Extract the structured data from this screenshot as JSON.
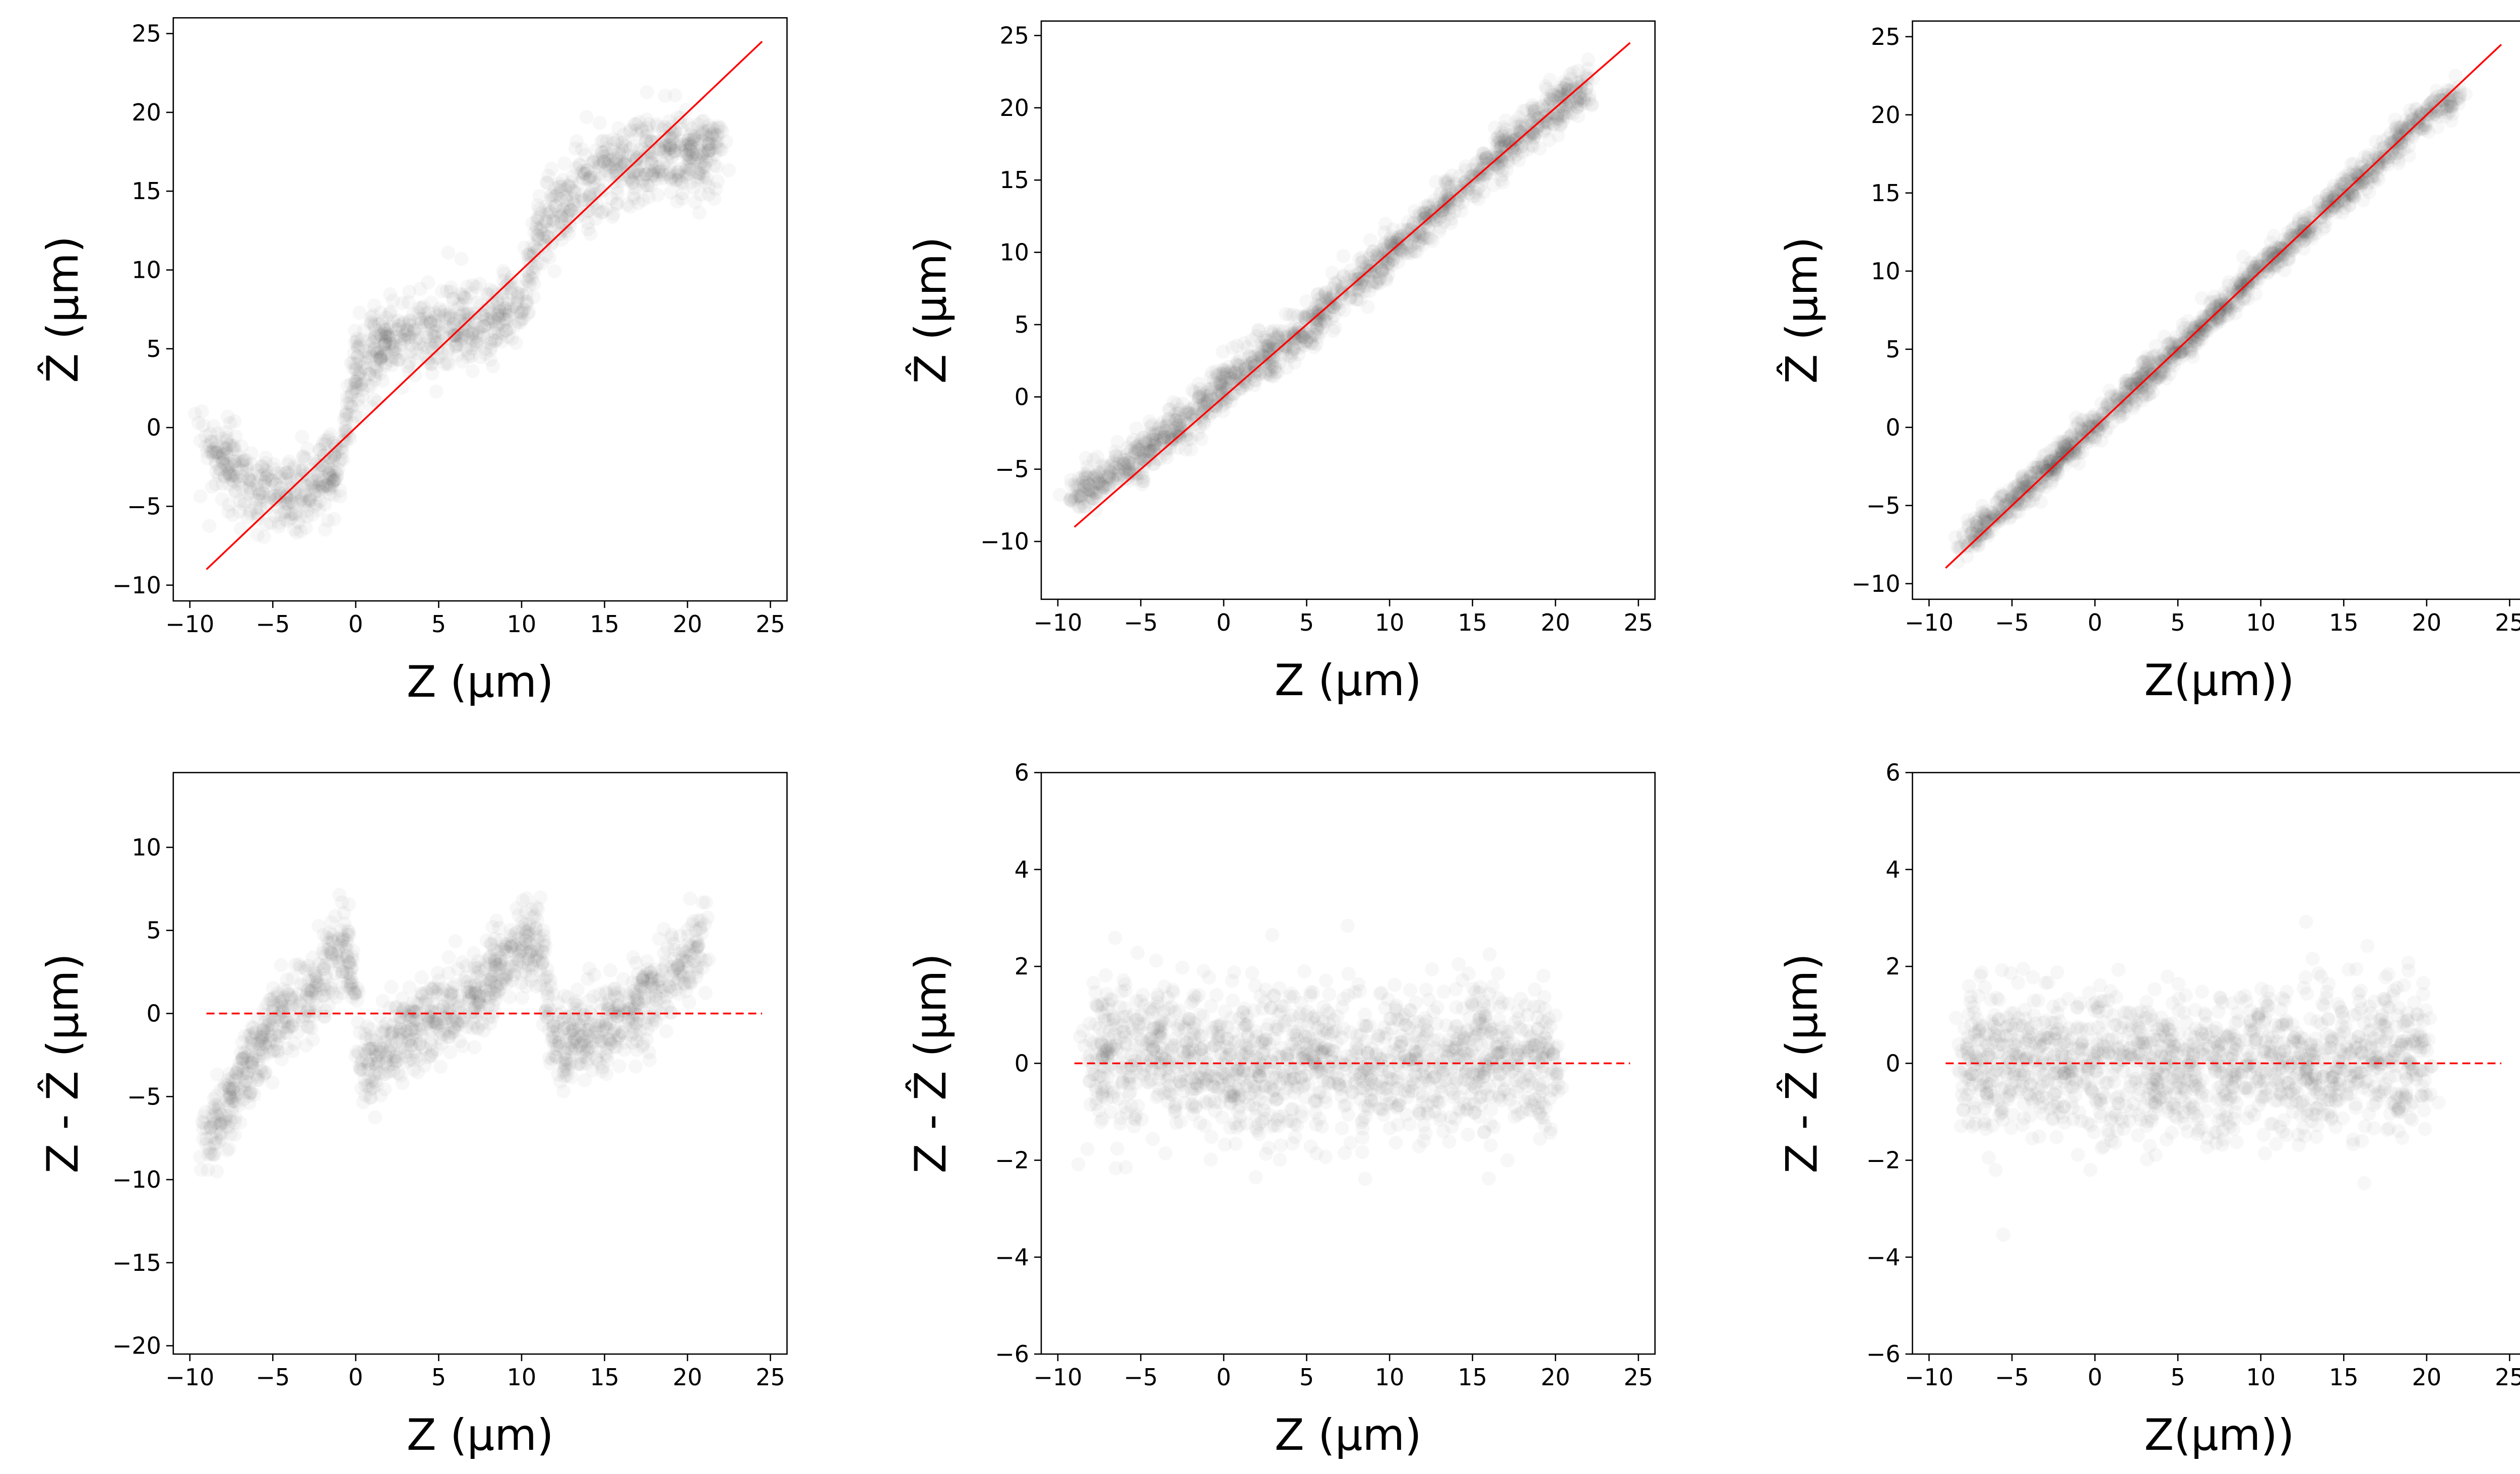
{
  "figure": {
    "background": "#ffffff"
  },
  "chart_data": [
    {
      "id": "top-left",
      "type": "scatter",
      "xlabel": "Z (µm)",
      "ylabel": "Ẑ (µm)",
      "xlim": [
        -11,
        26
      ],
      "ylim": [
        -11,
        26
      ],
      "xticks": [
        -10,
        -5,
        0,
        5,
        10,
        15,
        20,
        25
      ],
      "yticks": [
        -10,
        -5,
        0,
        5,
        10,
        15,
        20,
        25
      ],
      "reference_line": {
        "kind": "identity",
        "x": [
          -9,
          24.5
        ],
        "y": [
          -9,
          24.5
        ],
        "color": "#ff0000"
      },
      "point_color": "#4a4a4a",
      "scatter_trend": [
        {
          "x": -9,
          "y": -1.2
        },
        {
          "x": -6,
          "y": -3.8
        },
        {
          "x": -3,
          "y": -4.0
        },
        {
          "x": -1,
          "y": -3.0
        },
        {
          "x": 0,
          "y": 3.5
        },
        {
          "x": 2,
          "y": 5.8
        },
        {
          "x": 5,
          "y": 6.0
        },
        {
          "x": 8,
          "y": 6.8
        },
        {
          "x": 10,
          "y": 7.5
        },
        {
          "x": 11,
          "y": 12.5
        },
        {
          "x": 14,
          "y": 15.8
        },
        {
          "x": 17,
          "y": 17.0
        },
        {
          "x": 20,
          "y": 17.3
        },
        {
          "x": 22,
          "y": 17.8
        }
      ]
    },
    {
      "id": "top-middle",
      "type": "scatter",
      "xlabel": "Z (µm)",
      "ylabel": "Ẑ (µm)",
      "xlim": [
        -11,
        26
      ],
      "ylim": [
        -14,
        26
      ],
      "xticks": [
        -10,
        -5,
        0,
        5,
        10,
        15,
        20,
        25
      ],
      "yticks": [
        -10,
        -5,
        0,
        5,
        10,
        15,
        20,
        25
      ],
      "reference_line": {
        "kind": "identity",
        "x": [
          -9,
          24.5
        ],
        "y": [
          -9,
          24.5
        ],
        "color": "#ff0000"
      },
      "point_color": "#4a4a4a",
      "scatter_trend": [
        {
          "x": -9,
          "y": -7.0
        },
        {
          "x": -5,
          "y": -4.0
        },
        {
          "x": -2,
          "y": -1.5
        },
        {
          "x": 0,
          "y": 0.8
        },
        {
          "x": 5,
          "y": 4.8
        },
        {
          "x": 10,
          "y": 10.0
        },
        {
          "x": 15,
          "y": 15.0
        },
        {
          "x": 20,
          "y": 20.2
        },
        {
          "x": 22,
          "y": 21.5
        }
      ]
    },
    {
      "id": "top-right",
      "type": "scatter",
      "xlabel": "Z(µm))",
      "ylabel": "Ẑ (µm)",
      "xlim": [
        -11,
        26
      ],
      "ylim": [
        -11,
        26
      ],
      "xticks": [
        -10,
        -5,
        0,
        5,
        10,
        15,
        20,
        25
      ],
      "yticks": [
        -10,
        -5,
        0,
        5,
        10,
        15,
        20,
        25
      ],
      "reference_line": {
        "kind": "identity",
        "x": [
          -9,
          24.5
        ],
        "y": [
          -9,
          24.5
        ],
        "color": "#ff0000"
      },
      "point_color": "#4a4a4a",
      "scatter_trend": [
        {
          "x": -8,
          "y": -7.5
        },
        {
          "x": -4,
          "y": -3.8
        },
        {
          "x": 0,
          "y": 0.2
        },
        {
          "x": 5,
          "y": 5.0
        },
        {
          "x": 10,
          "y": 10.0
        },
        {
          "x": 15,
          "y": 15.0
        },
        {
          "x": 20,
          "y": 20.0
        },
        {
          "x": 22,
          "y": 21.5
        }
      ]
    },
    {
      "id": "bottom-left",
      "type": "scatter",
      "xlabel": "Z (µm)",
      "ylabel": "Z - Ẑ (µm)",
      "xlim": [
        -11,
        26
      ],
      "ylim": [
        -20.5,
        14.5
      ],
      "xticks": [
        -10,
        -5,
        0,
        5,
        10,
        15,
        20,
        25
      ],
      "yticks": [
        -20,
        -15,
        -10,
        -5,
        0,
        5,
        10
      ],
      "reference_line": {
        "kind": "zero",
        "x": [
          -9,
          24.5
        ],
        "y": [
          0,
          0
        ],
        "color": "#ff0000"
      },
      "point_color": "#4a4a4a",
      "scatter_trend": [
        {
          "x": -9,
          "y": -8.0
        },
        {
          "x": -6,
          "y": -2.2
        },
        {
          "x": -3,
          "y": 1.2
        },
        {
          "x": -0.5,
          "y": 4.2
        },
        {
          "x": 0.5,
          "y": -3.5
        },
        {
          "x": 3,
          "y": -1.2
        },
        {
          "x": 6,
          "y": 0.2
        },
        {
          "x": 9,
          "y": 3.0
        },
        {
          "x": 11,
          "y": 4.2
        },
        {
          "x": 12,
          "y": -1.8
        },
        {
          "x": 15,
          "y": -1.0
        },
        {
          "x": 18,
          "y": 1.2
        },
        {
          "x": 21,
          "y": 4.5
        }
      ]
    },
    {
      "id": "bottom-middle",
      "type": "scatter",
      "xlabel": "Z (µm)",
      "ylabel": "Z - Ẑ (µm)",
      "xlim": [
        -11,
        26
      ],
      "ylim": [
        -6,
        6
      ],
      "xticks": [
        -10,
        -5,
        0,
        5,
        10,
        15,
        20,
        25
      ],
      "yticks": [
        -6,
        -4,
        -2,
        0,
        2,
        4,
        6
      ],
      "reference_line": {
        "kind": "zero",
        "x": [
          -9,
          24.5
        ],
        "y": [
          0,
          0
        ],
        "color": "#ff0000"
      },
      "point_color": "#4a4a4a",
      "scatter_trend": [
        {
          "x": -8,
          "y": 0.0
        },
        {
          "x": -4,
          "y": 0.3
        },
        {
          "x": 0,
          "y": -0.2
        },
        {
          "x": 5,
          "y": 0.1
        },
        {
          "x": 10,
          "y": -0.1
        },
        {
          "x": 15,
          "y": 0.2
        },
        {
          "x": 20,
          "y": 0.0
        }
      ]
    },
    {
      "id": "bottom-right",
      "type": "scatter",
      "xlabel": "Z(µm))",
      "ylabel": "Z - Ẑ (µm)",
      "xlim": [
        -11,
        26
      ],
      "ylim": [
        -6,
        6
      ],
      "xticks": [
        -10,
        -5,
        0,
        5,
        10,
        15,
        20,
        25
      ],
      "yticks": [
        -6,
        -4,
        -2,
        0,
        2,
        4,
        6
      ],
      "reference_line": {
        "kind": "zero",
        "x": [
          -9,
          24.5
        ],
        "y": [
          0,
          0
        ],
        "color": "#ff0000"
      },
      "point_color": "#4a4a4a",
      "scatter_trend": [
        {
          "x": -8,
          "y": 0.0
        },
        {
          "x": -4,
          "y": 0.1
        },
        {
          "x": 0,
          "y": 0.0
        },
        {
          "x": 5,
          "y": -0.1
        },
        {
          "x": 10,
          "y": 0.0
        },
        {
          "x": 15,
          "y": 0.1
        },
        {
          "x": 20,
          "y": 0.0
        }
      ]
    }
  ]
}
